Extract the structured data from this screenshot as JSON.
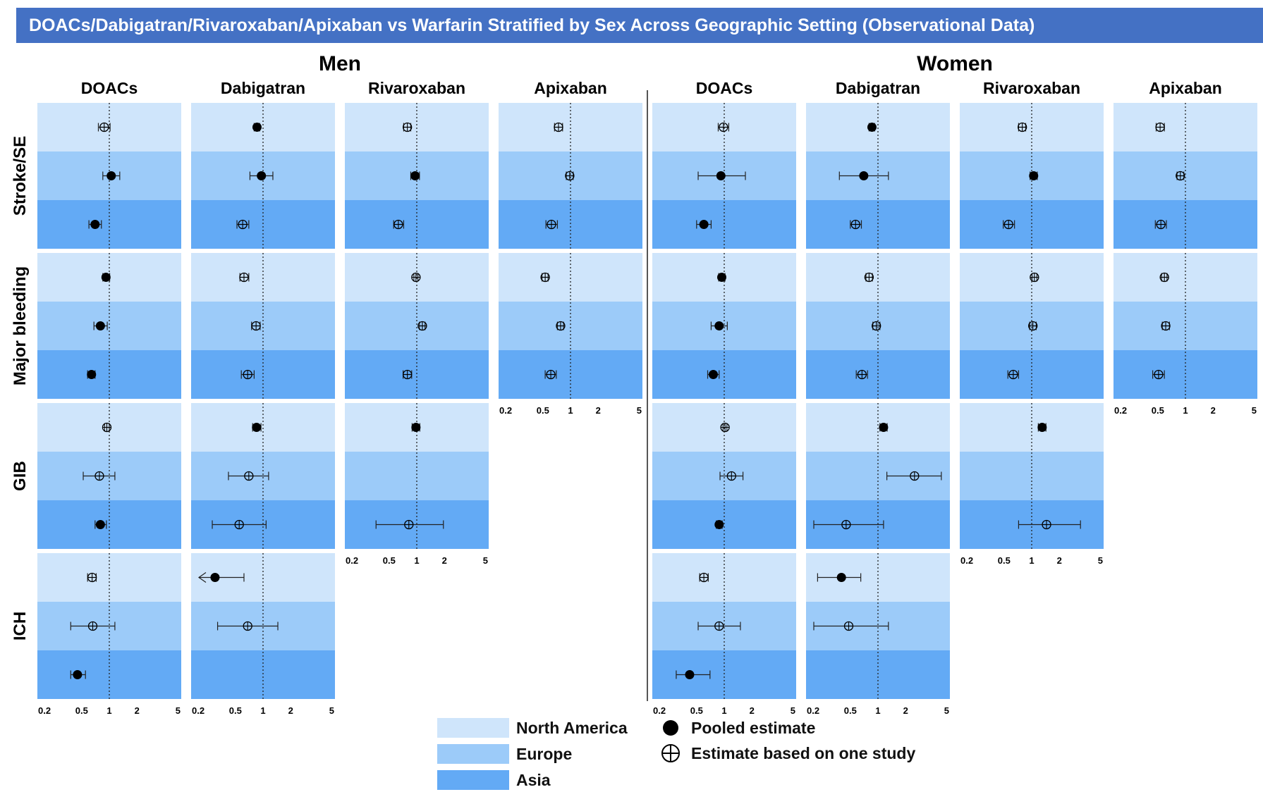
{
  "title": "DOACs/Dabigatran/Rivaroxaban/Apixaban vs Warfarin Stratified by Sex Across Geographic Setting (Observational Data)",
  "colors": {
    "title_bg": "#4471c4",
    "north_america": "#cfe5fb",
    "europe": "#9ccbf9",
    "asia": "#63aaf5"
  },
  "legend": {
    "regions": [
      "North America",
      "Europe",
      "Asia"
    ],
    "pooled": "Pooled estimate",
    "single": "Estimate based on one study"
  },
  "chart_data": {
    "type": "forest",
    "scale": "log",
    "xlim": [
      0.2,
      5
    ],
    "reference_line": 1,
    "x_ticks": [
      "0.2",
      "0.5",
      "1",
      "2",
      "5"
    ],
    "groups": [
      "Men",
      "Women"
    ],
    "drugs": [
      "DOACs",
      "Dabigatran",
      "Rivaroxaban",
      "Apixaban"
    ],
    "outcomes": [
      "Stroke/SE",
      "Major bleeding",
      "GIB",
      "ICH"
    ],
    "regions": [
      "North America",
      "Europe",
      "Asia"
    ],
    "panels": [
      {
        "group": "Men",
        "drug": "DOACs",
        "outcomes": [
          {
            "outcome": "Stroke/SE",
            "rows": [
              {
                "region": "North America",
                "est": 0.88,
                "lo": 0.76,
                "hi": 1.02,
                "pooled": false
              },
              {
                "region": "Europe",
                "est": 1.05,
                "lo": 0.85,
                "hi": 1.3,
                "pooled": true
              },
              {
                "region": "Asia",
                "est": 0.7,
                "lo": 0.6,
                "hi": 0.82,
                "pooled": true
              }
            ]
          },
          {
            "outcome": "Major bleeding",
            "rows": [
              {
                "region": "North America",
                "est": 0.92,
                "lo": 0.85,
                "hi": 1.01,
                "pooled": true
              },
              {
                "region": "Europe",
                "est": 0.8,
                "lo": 0.68,
                "hi": 0.95,
                "pooled": true
              },
              {
                "region": "Asia",
                "est": 0.64,
                "lo": 0.58,
                "hi": 0.7,
                "pooled": true
              }
            ]
          },
          {
            "outcome": "GIB",
            "rows": [
              {
                "region": "North America",
                "est": 0.94,
                "lo": 0.89,
                "hi": 1.0,
                "pooled": false
              },
              {
                "region": "Europe",
                "est": 0.78,
                "lo": 0.52,
                "hi": 1.15,
                "pooled": false
              },
              {
                "region": "Asia",
                "est": 0.8,
                "lo": 0.7,
                "hi": 0.93,
                "pooled": true
              }
            ]
          },
          {
            "outcome": "ICH",
            "rows": [
              {
                "region": "North America",
                "est": 0.65,
                "lo": 0.58,
                "hi": 0.72,
                "pooled": false
              },
              {
                "region": "Europe",
                "est": 0.66,
                "lo": 0.38,
                "hi": 1.15,
                "pooled": false
              },
              {
                "region": "Asia",
                "est": 0.45,
                "lo": 0.38,
                "hi": 0.55,
                "pooled": true
              }
            ]
          }
        ]
      },
      {
        "group": "Men",
        "drug": "Dabigatran",
        "outcomes": [
          {
            "outcome": "Stroke/SE",
            "rows": [
              {
                "region": "North America",
                "est": 0.86,
                "lo": 0.8,
                "hi": 0.92,
                "pooled": true
              },
              {
                "region": "Europe",
                "est": 0.96,
                "lo": 0.72,
                "hi": 1.28,
                "pooled": true
              },
              {
                "region": "Asia",
                "est": 0.6,
                "lo": 0.52,
                "hi": 0.7,
                "pooled": false
              }
            ]
          },
          {
            "outcome": "Major bleeding",
            "rows": [
              {
                "region": "North America",
                "est": 0.62,
                "lo": 0.56,
                "hi": 0.7,
                "pooled": false
              },
              {
                "region": "Europe",
                "est": 0.84,
                "lo": 0.75,
                "hi": 0.93,
                "pooled": false
              },
              {
                "region": "Asia",
                "est": 0.68,
                "lo": 0.58,
                "hi": 0.8,
                "pooled": false
              }
            ]
          },
          {
            "outcome": "GIB",
            "rows": [
              {
                "region": "North America",
                "est": 0.85,
                "lo": 0.77,
                "hi": 0.95,
                "pooled": true
              },
              {
                "region": "Europe",
                "est": 0.7,
                "lo": 0.42,
                "hi": 1.15,
                "pooled": false
              },
              {
                "region": "Asia",
                "est": 0.55,
                "lo": 0.28,
                "hi": 1.08,
                "pooled": false
              }
            ]
          },
          {
            "outcome": "ICH",
            "rows": [
              {
                "region": "North America",
                "est": 0.3,
                "lo": 0.18,
                "hi": 0.62,
                "pooled": true
              },
              {
                "region": "Europe",
                "est": 0.68,
                "lo": 0.32,
                "hi": 1.45,
                "pooled": false
              },
              {
                "region": "Asia",
                "est": null,
                "lo": null,
                "hi": null,
                "pooled": false
              }
            ]
          }
        ]
      },
      {
        "group": "Men",
        "drug": "Rivaroxaban",
        "outcomes": [
          {
            "outcome": "Stroke/SE",
            "rows": [
              {
                "region": "North America",
                "est": 0.79,
                "lo": 0.72,
                "hi": 0.86,
                "pooled": false
              },
              {
                "region": "Europe",
                "est": 0.96,
                "lo": 0.86,
                "hi": 1.07,
                "pooled": true
              },
              {
                "region": "Asia",
                "est": 0.63,
                "lo": 0.56,
                "hi": 0.72,
                "pooled": false
              }
            ]
          },
          {
            "outcome": "Major bleeding",
            "rows": [
              {
                "region": "North America",
                "est": 0.98,
                "lo": 0.93,
                "hi": 1.03,
                "pooled": false
              },
              {
                "region": "Europe",
                "est": 1.15,
                "lo": 1.07,
                "hi": 1.23,
                "pooled": false
              },
              {
                "region": "Asia",
                "est": 0.79,
                "lo": 0.71,
                "hi": 0.88,
                "pooled": false
              }
            ]
          },
          {
            "outcome": "GIB",
            "rows": [
              {
                "region": "North America",
                "est": 0.98,
                "lo": 0.89,
                "hi": 1.08,
                "pooled": true
              },
              {
                "region": "Europe",
                "est": null,
                "lo": null,
                "hi": null,
                "pooled": false
              },
              {
                "region": "Asia",
                "est": 0.82,
                "lo": 0.36,
                "hi": 1.95,
                "pooled": false
              }
            ]
          }
        ]
      },
      {
        "group": "Men",
        "drug": "Apixaban",
        "outcomes": [
          {
            "outcome": "Stroke/SE",
            "rows": [
              {
                "region": "North America",
                "est": 0.74,
                "lo": 0.67,
                "hi": 0.82,
                "pooled": false
              },
              {
                "region": "Europe",
                "est": 0.98,
                "lo": 0.9,
                "hi": 1.07,
                "pooled": false
              },
              {
                "region": "Asia",
                "est": 0.62,
                "lo": 0.54,
                "hi": 0.72,
                "pooled": false
              }
            ]
          },
          {
            "outcome": "Major bleeding",
            "rows": [
              {
                "region": "North America",
                "est": 0.53,
                "lo": 0.49,
                "hi": 0.57,
                "pooled": false
              },
              {
                "region": "Europe",
                "est": 0.78,
                "lo": 0.72,
                "hi": 0.84,
                "pooled": false
              },
              {
                "region": "Asia",
                "est": 0.61,
                "lo": 0.53,
                "hi": 0.7,
                "pooled": false
              }
            ]
          }
        ]
      },
      {
        "group": "Women",
        "drug": "DOACs",
        "outcomes": [
          {
            "outcome": "Stroke/SE",
            "rows": [
              {
                "region": "North America",
                "est": 0.98,
                "lo": 0.86,
                "hi": 1.12,
                "pooled": false
              },
              {
                "region": "Europe",
                "est": 0.92,
                "lo": 0.52,
                "hi": 1.7,
                "pooled": true
              },
              {
                "region": "Asia",
                "est": 0.6,
                "lo": 0.5,
                "hi": 0.72,
                "pooled": true
              }
            ]
          },
          {
            "outcome": "Major bleeding",
            "rows": [
              {
                "region": "North America",
                "est": 0.94,
                "lo": 0.87,
                "hi": 1.02,
                "pooled": true
              },
              {
                "region": "Europe",
                "est": 0.88,
                "lo": 0.72,
                "hi": 1.08,
                "pooled": true
              },
              {
                "region": "Asia",
                "est": 0.76,
                "lo": 0.66,
                "hi": 0.88,
                "pooled": true
              }
            ]
          },
          {
            "outcome": "GIB",
            "rows": [
              {
                "region": "North America",
                "est": 1.02,
                "lo": 0.97,
                "hi": 1.07,
                "pooled": false
              },
              {
                "region": "Europe",
                "est": 1.2,
                "lo": 0.9,
                "hi": 1.6,
                "pooled": false
              },
              {
                "region": "Asia",
                "est": 0.88,
                "lo": 0.82,
                "hi": 0.95,
                "pooled": true
              }
            ]
          },
          {
            "outcome": "ICH",
            "rows": [
              {
                "region": "North America",
                "est": 0.6,
                "lo": 0.54,
                "hi": 0.67,
                "pooled": false
              },
              {
                "region": "Europe",
                "est": 0.88,
                "lo": 0.52,
                "hi": 1.5,
                "pooled": false
              },
              {
                "region": "Asia",
                "est": 0.42,
                "lo": 0.3,
                "hi": 0.7,
                "pooled": true
              }
            ]
          }
        ]
      },
      {
        "group": "Women",
        "drug": "Dabigatran",
        "outcomes": [
          {
            "outcome": "Stroke/SE",
            "rows": [
              {
                "region": "North America",
                "est": 0.86,
                "lo": 0.8,
                "hi": 0.92,
                "pooled": true
              },
              {
                "region": "Europe",
                "est": 0.7,
                "lo": 0.38,
                "hi": 1.3,
                "pooled": true
              },
              {
                "region": "Asia",
                "est": 0.57,
                "lo": 0.5,
                "hi": 0.66,
                "pooled": false
              }
            ]
          },
          {
            "outcome": "Major bleeding",
            "rows": [
              {
                "region": "North America",
                "est": 0.8,
                "lo": 0.74,
                "hi": 0.87,
                "pooled": false
              },
              {
                "region": "Europe",
                "est": 0.96,
                "lo": 0.88,
                "hi": 1.05,
                "pooled": false
              },
              {
                "region": "Asia",
                "est": 0.67,
                "lo": 0.58,
                "hi": 0.77,
                "pooled": false
              }
            ]
          },
          {
            "outcome": "GIB",
            "rows": [
              {
                "region": "North America",
                "est": 1.15,
                "lo": 1.05,
                "hi": 1.26,
                "pooled": true
              },
              {
                "region": "Europe",
                "est": 2.5,
                "lo": 1.25,
                "hi": 4.9,
                "pooled": false
              },
              {
                "region": "Asia",
                "est": 0.45,
                "lo": 0.2,
                "hi": 1.15,
                "pooled": false
              }
            ]
          },
          {
            "outcome": "ICH",
            "rows": [
              {
                "region": "North America",
                "est": 0.4,
                "lo": 0.22,
                "hi": 0.65,
                "pooled": true
              },
              {
                "region": "Europe",
                "est": 0.48,
                "lo": 0.2,
                "hi": 1.3,
                "pooled": false
              },
              {
                "region": "Asia",
                "est": null,
                "lo": null,
                "hi": null,
                "pooled": false
              }
            ]
          }
        ]
      },
      {
        "group": "Women",
        "drug": "Rivaroxaban",
        "outcomes": [
          {
            "outcome": "Stroke/SE",
            "rows": [
              {
                "region": "North America",
                "est": 0.79,
                "lo": 0.72,
                "hi": 0.86,
                "pooled": false
              },
              {
                "region": "Europe",
                "est": 1.05,
                "lo": 0.96,
                "hi": 1.15,
                "pooled": true
              },
              {
                "region": "Asia",
                "est": 0.56,
                "lo": 0.49,
                "hi": 0.65,
                "pooled": false
              }
            ]
          },
          {
            "outcome": "Major bleeding",
            "rows": [
              {
                "region": "North America",
                "est": 1.07,
                "lo": 1.01,
                "hi": 1.14,
                "pooled": false
              },
              {
                "region": "Europe",
                "est": 1.03,
                "lo": 0.95,
                "hi": 1.12,
                "pooled": false
              },
              {
                "region": "Asia",
                "est": 0.63,
                "lo": 0.55,
                "hi": 0.72,
                "pooled": false
              }
            ]
          },
          {
            "outcome": "GIB",
            "rows": [
              {
                "region": "North America",
                "est": 1.3,
                "lo": 1.18,
                "hi": 1.43,
                "pooled": true
              },
              {
                "region": "Europe",
                "est": null,
                "lo": null,
                "hi": null,
                "pooled": false
              },
              {
                "region": "Asia",
                "est": 1.45,
                "lo": 0.72,
                "hi": 3.4,
                "pooled": false
              }
            ]
          }
        ]
      },
      {
        "group": "Women",
        "drug": "Apixaban",
        "outcomes": [
          {
            "outcome": "Stroke/SE",
            "rows": [
              {
                "region": "North America",
                "est": 0.53,
                "lo": 0.48,
                "hi": 0.59,
                "pooled": false
              },
              {
                "region": "Europe",
                "est": 0.88,
                "lo": 0.81,
                "hi": 0.96,
                "pooled": false
              },
              {
                "region": "Asia",
                "est": 0.54,
                "lo": 0.47,
                "hi": 0.62,
                "pooled": false
              }
            ]
          },
          {
            "outcome": "Major bleeding",
            "rows": [
              {
                "region": "North America",
                "est": 0.59,
                "lo": 0.55,
                "hi": 0.63,
                "pooled": false
              },
              {
                "region": "Europe",
                "est": 0.61,
                "lo": 0.56,
                "hi": 0.67,
                "pooled": false
              },
              {
                "region": "Asia",
                "est": 0.51,
                "lo": 0.44,
                "hi": 0.59,
                "pooled": false
              }
            ]
          }
        ]
      }
    ]
  }
}
